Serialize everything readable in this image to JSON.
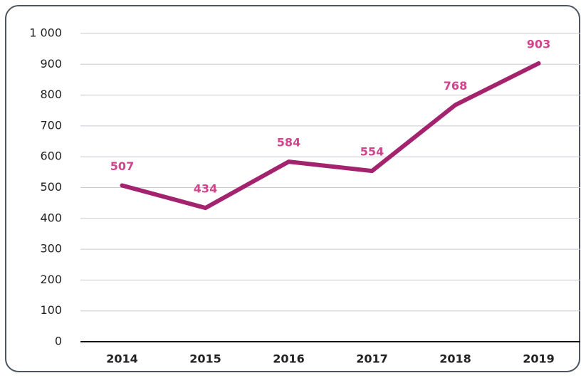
{
  "chart_data": {
    "type": "line",
    "categories": [
      "2014",
      "2015",
      "2016",
      "2017",
      "2018",
      "2019"
    ],
    "values": [
      507,
      434,
      584,
      554,
      768,
      903
    ],
    "color": "#a3236e",
    "label_color": "#d1448c",
    "ylim": [
      0,
      1000
    ],
    "yticks": [
      0,
      100,
      200,
      300,
      400,
      500,
      600,
      700,
      800,
      900,
      {
        "value": 1000,
        "label": "1 000"
      }
    ],
    "grid": true
  }
}
